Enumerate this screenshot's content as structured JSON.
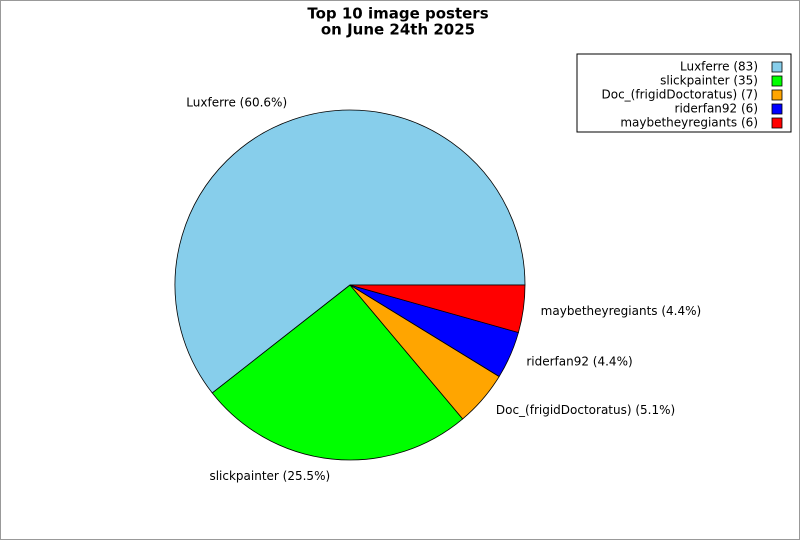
{
  "chart_data": {
    "type": "pie",
    "title": [
      "Top 10 image posters",
      "on June 24th 2025"
    ],
    "values": [
      83,
      35,
      7,
      6,
      6
    ],
    "labels": [
      "Luxferre (60.6%)",
      "slickpainter (25.5%)",
      "Doc_(frigidDoctoratus) (5.1%)",
      "riderfan92 (4.4%)",
      "maybetheyregiants (4.4%)"
    ],
    "legend_labels": [
      "Luxferre (83)",
      "slickpainter (35)",
      "Doc_(frigidDoctoratus) (7)",
      "riderfan92 (6)",
      "maybetheyregiants (6)"
    ],
    "colors": [
      "#87ceeb",
      "#00ff00",
      "#ffa500",
      "#0000ff",
      "#ff0000"
    ],
    "legend": "upper right"
  }
}
